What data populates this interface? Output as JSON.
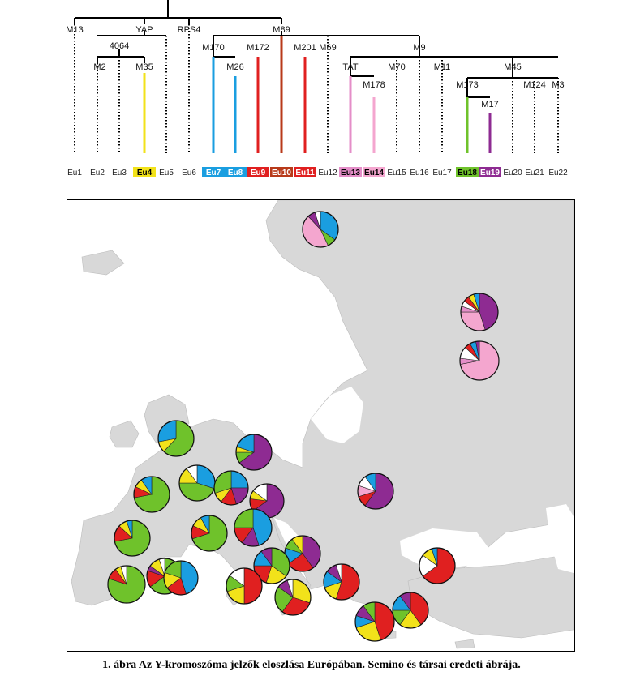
{
  "caption": "1. ábra Az Y-kromoszóma jelzők eloszlása Európában. Semino és társai eredeti ábrája.",
  "colors": {
    "Eu4": "#f2e21a",
    "Eu7": "#1a9ee0",
    "Eu8": "#1a9ee0",
    "Eu9": "#e02020",
    "Eu10": "#b83a1a",
    "Eu11": "#e02020",
    "Eu13": "#e48ec8",
    "Eu14": "#f4a6cf",
    "Eu18": "#6fc22b",
    "Eu19": "#8e2b92",
    "other": "#ffffff",
    "land": "#d8d8d8",
    "sea": "#ffffff",
    "tree_line": "#000000"
  },
  "tree": {
    "markers": [
      "M13",
      "YAP",
      "RPS4",
      "M89",
      "4064",
      "M2",
      "M35",
      "M170",
      "M26",
      "M172",
      "M201",
      "M69",
      "M9",
      "TAT",
      "M178",
      "M70",
      "M11",
      "M45",
      "M173",
      "M17",
      "M124",
      "M3"
    ],
    "leaves": [
      "Eu1",
      "Eu2",
      "Eu3",
      "Eu4",
      "Eu5",
      "Eu6",
      "Eu7",
      "Eu8",
      "Eu9",
      "Eu10",
      "Eu11",
      "Eu12",
      "Eu13",
      "Eu14",
      "Eu15",
      "Eu16",
      "Eu17",
      "Eu18",
      "Eu19",
      "Eu20",
      "Eu21",
      "Eu22"
    ],
    "highlighted": [
      "Eu4",
      "Eu7",
      "Eu8",
      "Eu9",
      "Eu10",
      "Eu11",
      "Eu13",
      "Eu14",
      "Eu18",
      "Eu19"
    ]
  },
  "pies": [
    {
      "slices": [
        [
          "Eu7",
          0.35
        ],
        [
          "Eu18",
          0.08
        ],
        [
          "Eu14",
          0.45
        ],
        [
          "Eu19",
          0.07
        ],
        [
          "other",
          0.05
        ]
      ]
    },
    {
      "slices": [
        [
          "Eu19",
          0.45
        ],
        [
          "Eu14",
          0.3
        ],
        [
          "Eu13",
          0.05
        ],
        [
          "other",
          0.05
        ],
        [
          "Eu9",
          0.05
        ],
        [
          "Eu4",
          0.05
        ],
        [
          "Eu7",
          0.05
        ]
      ]
    },
    {
      "slices": [
        [
          "Eu14",
          0.72
        ],
        [
          "Eu13",
          0.05
        ],
        [
          "other",
          0.1
        ],
        [
          "Eu9",
          0.05
        ],
        [
          "Eu7",
          0.05
        ],
        [
          "Eu19",
          0.03
        ]
      ]
    },
    {
      "slices": [
        [
          "Eu18",
          0.62
        ],
        [
          "Eu4",
          0.1
        ],
        [
          "Eu7",
          0.28
        ]
      ]
    },
    {
      "slices": [
        [
          "Eu19",
          0.65
        ],
        [
          "Eu18",
          0.1
        ],
        [
          "Eu4",
          0.05
        ],
        [
          "Eu7",
          0.2
        ]
      ]
    },
    {
      "slices": [
        [
          "Eu18",
          0.72
        ],
        [
          "Eu9",
          0.1
        ],
        [
          "Eu4",
          0.08
        ],
        [
          "Eu7",
          0.1
        ]
      ]
    },
    {
      "slices": [
        [
          "Eu7",
          0.3
        ],
        [
          "Eu18",
          0.45
        ],
        [
          "Eu4",
          0.15
        ],
        [
          "other",
          0.1
        ]
      ]
    },
    {
      "slices": [
        [
          "Eu7",
          0.25
        ],
        [
          "Eu19",
          0.2
        ],
        [
          "Eu9",
          0.15
        ],
        [
          "Eu4",
          0.1
        ],
        [
          "Eu18",
          0.3
        ]
      ]
    },
    {
      "slices": [
        [
          "Eu19",
          0.65
        ],
        [
          "Eu9",
          0.12
        ],
        [
          "Eu4",
          0.08
        ],
        [
          "other",
          0.15
        ]
      ]
    },
    {
      "slices": [
        [
          "Eu19",
          0.6
        ],
        [
          "Eu9",
          0.1
        ],
        [
          "Eu14",
          0.1
        ],
        [
          "other",
          0.1
        ],
        [
          "Eu7",
          0.1
        ]
      ]
    },
    {
      "slices": [
        [
          "Eu18",
          0.72
        ],
        [
          "Eu9",
          0.15
        ],
        [
          "Eu4",
          0.08
        ],
        [
          "Eu7",
          0.05
        ]
      ]
    },
    {
      "slices": [
        [
          "Eu18",
          0.7
        ],
        [
          "Eu9",
          0.12
        ],
        [
          "Eu4",
          0.1
        ],
        [
          "Eu7",
          0.08
        ]
      ]
    },
    {
      "slices": [
        [
          "Eu7",
          0.45
        ],
        [
          "Eu19",
          0.15
        ],
        [
          "Eu9",
          0.15
        ],
        [
          "Eu18",
          0.25
        ]
      ]
    },
    {
      "slices": [
        [
          "Eu18",
          0.65
        ],
        [
          "Eu9",
          0.15
        ],
        [
          "Eu19",
          0.05
        ],
        [
          "Eu4",
          0.1
        ],
        [
          "other",
          0.05
        ]
      ]
    },
    {
      "slices": [
        [
          "Eu18",
          0.8
        ],
        [
          "Eu9",
          0.1
        ],
        [
          "Eu4",
          0.05
        ],
        [
          "other",
          0.05
        ]
      ]
    },
    {
      "slices": [
        [
          "Eu7",
          0.45
        ],
        [
          "Eu9",
          0.2
        ],
        [
          "Eu4",
          0.15
        ],
        [
          "Eu18",
          0.2
        ]
      ]
    },
    {
      "slices": [
        [
          "Eu19",
          0.4
        ],
        [
          "Eu9",
          0.25
        ],
        [
          "Eu7",
          0.15
        ],
        [
          "Eu18",
          0.1
        ],
        [
          "Eu4",
          0.1
        ]
      ]
    },
    {
      "slices": [
        [
          "Eu18",
          0.35
        ],
        [
          "Eu4",
          0.2
        ],
        [
          "Eu9",
          0.2
        ],
        [
          "Eu7",
          0.15
        ],
        [
          "Eu19",
          0.1
        ]
      ]
    },
    {
      "slices": [
        [
          "Eu9",
          0.5
        ],
        [
          "Eu4",
          0.2
        ],
        [
          "Eu18",
          0.15
        ],
        [
          "other",
          0.15
        ]
      ]
    },
    {
      "slices": [
        [
          "Eu4",
          0.3
        ],
        [
          "Eu9",
          0.3
        ],
        [
          "Eu18",
          0.25
        ],
        [
          "Eu19",
          0.1
        ],
        [
          "other",
          0.05
        ]
      ]
    },
    {
      "slices": [
        [
          "Eu9",
          0.55
        ],
        [
          "Eu4",
          0.15
        ],
        [
          "Eu7",
          0.15
        ],
        [
          "Eu19",
          0.1
        ],
        [
          "other",
          0.05
        ]
      ]
    },
    {
      "slices": [
        [
          "Eu9",
          0.45
        ],
        [
          "Eu4",
          0.25
        ],
        [
          "Eu7",
          0.1
        ],
        [
          "Eu19",
          0.1
        ],
        [
          "Eu18",
          0.1
        ]
      ]
    },
    {
      "slices": [
        [
          "Eu9",
          0.4
        ],
        [
          "Eu4",
          0.2
        ],
        [
          "Eu18",
          0.15
        ],
        [
          "Eu7",
          0.15
        ],
        [
          "Eu19",
          0.1
        ]
      ]
    },
    {
      "slices": [
        [
          "Eu9",
          0.65
        ],
        [
          "other",
          0.2
        ],
        [
          "Eu4",
          0.1
        ],
        [
          "Eu7",
          0.05
        ]
      ]
    }
  ]
}
